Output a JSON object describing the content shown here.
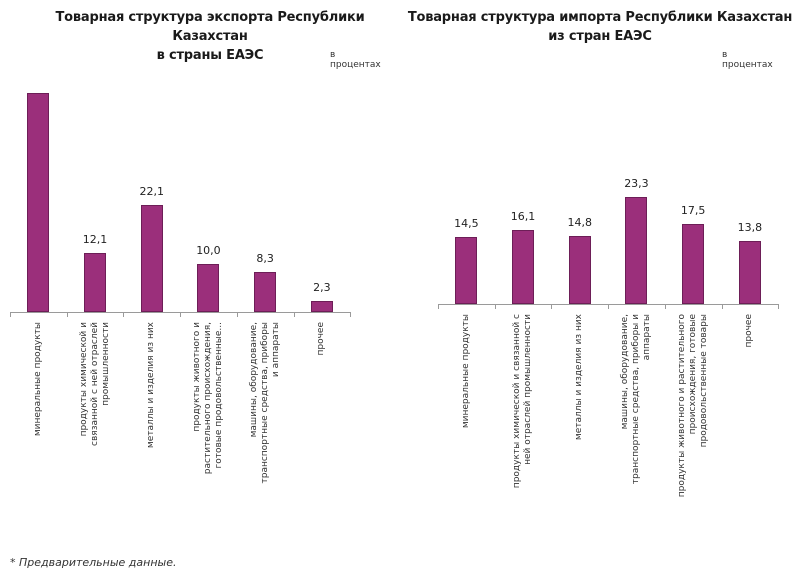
{
  "chart_data": [
    {
      "type": "bar",
      "title": "Товарная структура экспорта Республики Казахстан в страны ЕАЭС",
      "title_lines": [
        "Товарная структура экспорта Республики Казахстан",
        "в страны ЕАЭС"
      ],
      "unit": "в процентах",
      "categories": [
        "минеральные продукты",
        "продукты химической и связанной с ней отраслей промышленности",
        "металлы и изделия из них",
        "продукты животного и растительного происхождения, готовые продовольственные...",
        "машины, оборудование, транспортные средства, приборы и аппараты",
        "прочее"
      ],
      "category_lines": [
        [
          "минеральные продукты"
        ],
        [
          "продукты химической и",
          "связанной с ней отраслей",
          "промышленности"
        ],
        [
          "металлы и изделия из них"
        ],
        [
          "продукты животного и",
          "растительного происхождения,",
          "готовые продовольственные..."
        ],
        [
          "машины, оборудование,",
          "транспортные средства, приборы",
          "и аппараты"
        ],
        [
          "прочее"
        ]
      ],
      "values": [
        45.2,
        12.1,
        22.1,
        10.0,
        8.3,
        2.3
      ],
      "value_labels": [
        "",
        "12,1",
        "22,1",
        "10,0",
        "8,3",
        "2,3"
      ],
      "xlabel": "",
      "ylabel": "",
      "grid": false,
      "legend": null
    },
    {
      "type": "bar",
      "title": "Товарная структура импорта Республики Казахстан из стран ЕАЭС",
      "title_lines": [
        "Товарная структура импорта Республики Казахстан",
        "из стран ЕАЭС"
      ],
      "unit": "в процентах",
      "categories": [
        "минеральные продукты",
        "продукты химической и связанной с ней отраслей промышленности",
        "металлы и изделия из них",
        "машины, оборудование, транспортные средства, приборы и аппараты",
        "продукты животного и растительного происхождения, готовые продовольственные товары",
        "прочее"
      ],
      "category_lines": [
        [
          "минеральные продукты"
        ],
        [
          "продукты химической и связанной с",
          "ней отраслей промышленности"
        ],
        [
          "металлы и изделия из них"
        ],
        [
          "машины, оборудование,",
          "транспортные средства, приборы и",
          "аппараты"
        ],
        [
          "продукты животного и растительного",
          "происхождения, готовые",
          "продовольственные товары"
        ],
        [
          "прочее"
        ]
      ],
      "values": [
        14.5,
        16.1,
        14.8,
        23.3,
        17.5,
        13.8
      ],
      "value_labels": [
        "14,5",
        "16,1",
        "14,8",
        "23,3",
        "17,5",
        "13,8"
      ],
      "xlabel": "",
      "ylabel": "",
      "grid": false,
      "legend": null
    }
  ],
  "footnote": "* Предварительные данные.",
  "colors": {
    "bar": "#9b2f7b",
    "bar_border": "#6d1e57",
    "axis": "#9a9a9a"
  }
}
